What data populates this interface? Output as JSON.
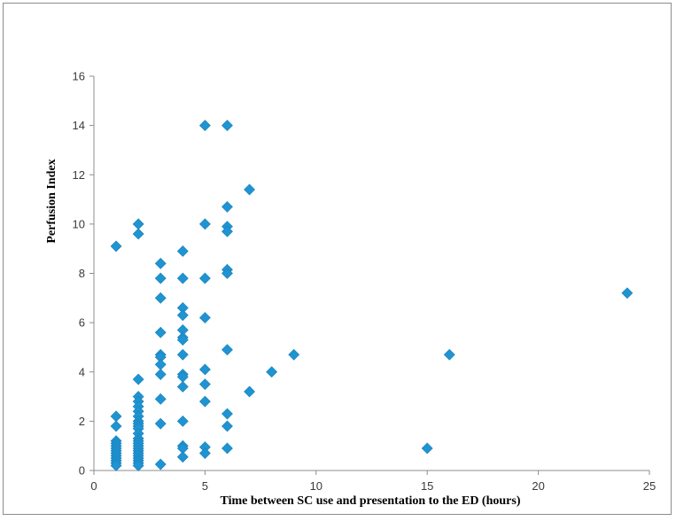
{
  "chart_data": {
    "type": "scatter",
    "title": "",
    "xlabel": "Time between SC use and presentation to the ED (hours)",
    "ylabel": "Perfusion Index",
    "xlim": [
      0,
      25
    ],
    "ylim": [
      0,
      16
    ],
    "x_ticks": [
      0,
      5,
      10,
      15,
      20,
      25
    ],
    "y_ticks": [
      0,
      2,
      4,
      6,
      8,
      10,
      12,
      14,
      16
    ],
    "grid": false,
    "legend": "none",
    "marker": "diamond",
    "color": "#1f94d2",
    "series": [
      {
        "points": [
          [
            1,
            9.1
          ],
          [
            1,
            2.2
          ],
          [
            1,
            1.8
          ],
          [
            1,
            1.2
          ],
          [
            1,
            1.1
          ],
          [
            1,
            1.0
          ],
          [
            1,
            0.9
          ],
          [
            1,
            0.8
          ],
          [
            1,
            0.7
          ],
          [
            1,
            0.6
          ],
          [
            1,
            0.5
          ],
          [
            1,
            0.4
          ],
          [
            1,
            0.3
          ],
          [
            1,
            0.2
          ],
          [
            2,
            10.0
          ],
          [
            2,
            9.6
          ],
          [
            2,
            3.7
          ],
          [
            2,
            3.0
          ],
          [
            2,
            2.8
          ],
          [
            2,
            2.6
          ],
          [
            2,
            2.4
          ],
          [
            2,
            2.2
          ],
          [
            2,
            2.0
          ],
          [
            2,
            1.9
          ],
          [
            2,
            1.8
          ],
          [
            2,
            1.7
          ],
          [
            2,
            1.5
          ],
          [
            2,
            1.3
          ],
          [
            2,
            1.2
          ],
          [
            2,
            1.1
          ],
          [
            2,
            1.0
          ],
          [
            2,
            0.9
          ],
          [
            2,
            0.8
          ],
          [
            2,
            0.7
          ],
          [
            2,
            0.6
          ],
          [
            2,
            0.5
          ],
          [
            2,
            0.4
          ],
          [
            2,
            0.3
          ],
          [
            2,
            0.2
          ],
          [
            3,
            8.4
          ],
          [
            3,
            7.8
          ],
          [
            3,
            7.0
          ],
          [
            3,
            5.6
          ],
          [
            3,
            4.7
          ],
          [
            3,
            4.6
          ],
          [
            3,
            4.3
          ],
          [
            3,
            3.9
          ],
          [
            3,
            2.9
          ],
          [
            3,
            1.9
          ],
          [
            3,
            0.25
          ],
          [
            4,
            8.9
          ],
          [
            4,
            7.8
          ],
          [
            4,
            6.6
          ],
          [
            4,
            6.3
          ],
          [
            4,
            5.7
          ],
          [
            4,
            5.4
          ],
          [
            4,
            5.3
          ],
          [
            4,
            4.7
          ],
          [
            4,
            3.9
          ],
          [
            4,
            3.8
          ],
          [
            4,
            3.4
          ],
          [
            4,
            2.0
          ],
          [
            4,
            1.0
          ],
          [
            4,
            0.9
          ],
          [
            4,
            0.55
          ],
          [
            5,
            14.0
          ],
          [
            5,
            10.0
          ],
          [
            5,
            7.8
          ],
          [
            5,
            6.2
          ],
          [
            5,
            4.1
          ],
          [
            5,
            3.5
          ],
          [
            5,
            2.8
          ],
          [
            5,
            0.95
          ],
          [
            5,
            0.7
          ],
          [
            6,
            14.0
          ],
          [
            6,
            10.7
          ],
          [
            6,
            9.9
          ],
          [
            6,
            9.7
          ],
          [
            6,
            8.15
          ],
          [
            6,
            8.0
          ],
          [
            6,
            4.9
          ],
          [
            6,
            2.3
          ],
          [
            6,
            1.8
          ],
          [
            6,
            0.9
          ],
          [
            7,
            11.4
          ],
          [
            7,
            3.2
          ],
          [
            8,
            4.0
          ],
          [
            9,
            4.7
          ],
          [
            15,
            0.9
          ],
          [
            16,
            4.7
          ],
          [
            24,
            7.2
          ]
        ]
      }
    ]
  }
}
